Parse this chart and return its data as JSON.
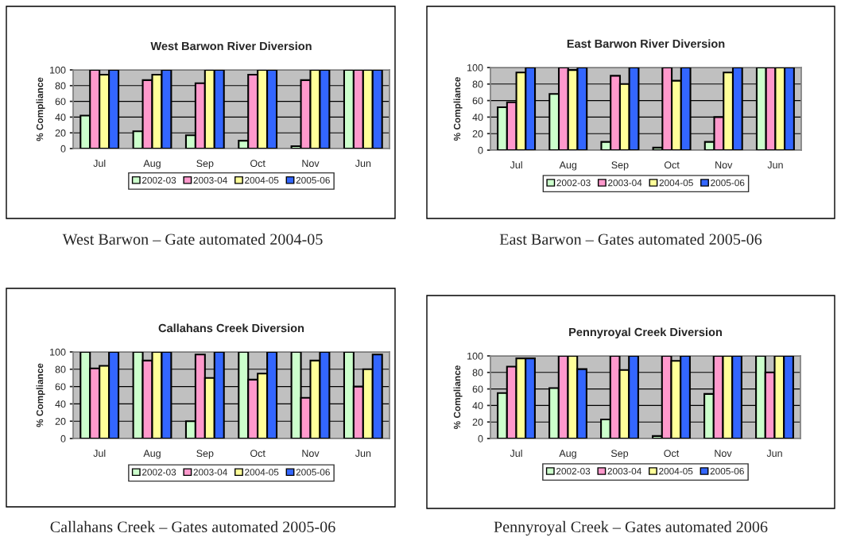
{
  "chart_data": [
    {
      "type": "bar",
      "title": "West Barwon River Diversion",
      "ylabel": "% Compliance",
      "categories": [
        "Jul",
        "Aug",
        "Sep",
        "Oct",
        "Nov",
        "Jun"
      ],
      "ylim": [
        0,
        100
      ],
      "yticks": [
        0,
        20,
        40,
        60,
        80,
        100
      ],
      "grid": "y",
      "legend": "bottom",
      "annotations": [
        "West Barwon – Gate automated 2004-05"
      ],
      "series": [
        {
          "name": "2002-03",
          "color": "#ccffcc",
          "values": [
            42,
            22,
            17,
            10,
            3,
            100
          ]
        },
        {
          "name": "2003-04",
          "color": "#ff99cc",
          "values": [
            100,
            87,
            83,
            94,
            87,
            100
          ]
        },
        {
          "name": "2004-05",
          "color": "#ffff99",
          "values": [
            94,
            94,
            100,
            100,
            100,
            100
          ]
        },
        {
          "name": "2005-06",
          "color": "#3366ff",
          "values": [
            100,
            100,
            100,
            100,
            100,
            100
          ]
        }
      ]
    },
    {
      "type": "bar",
      "title": "East Barwon River Diversion",
      "ylabel": "% Compliance",
      "categories": [
        "Jul",
        "Aug",
        "Sep",
        "Oct",
        "Nov",
        "Jun"
      ],
      "ylim": [
        0,
        100
      ],
      "yticks": [
        0,
        20,
        40,
        60,
        80,
        100
      ],
      "grid": "y",
      "legend": "bottom",
      "annotations": [
        "East Barwon – Gates automated 2005-06"
      ],
      "series": [
        {
          "name": "2002-03",
          "color": "#ccffcc",
          "values": [
            52,
            68,
            10,
            3,
            10,
            100
          ]
        },
        {
          "name": "2003-04",
          "color": "#ff99cc",
          "values": [
            58,
            100,
            90,
            100,
            40,
            100
          ]
        },
        {
          "name": "2004-05",
          "color": "#ffff99",
          "values": [
            94,
            97,
            80,
            84,
            94,
            100
          ]
        },
        {
          "name": "2005-06",
          "color": "#3366ff",
          "values": [
            100,
            100,
            100,
            100,
            100,
            100
          ]
        }
      ]
    },
    {
      "type": "bar",
      "title": "Callahans Creek Diversion",
      "ylabel": "% Compliance",
      "categories": [
        "Jul",
        "Aug",
        "Sep",
        "Oct",
        "Nov",
        "Jun"
      ],
      "ylim": [
        0,
        100
      ],
      "yticks": [
        0,
        20,
        40,
        60,
        80,
        100
      ],
      "grid": "y",
      "legend": "bottom",
      "annotations": [
        "Callahans Creek – Gates automated 2005-06"
      ],
      "series": [
        {
          "name": "2002-03",
          "color": "#ccffcc",
          "values": [
            100,
            100,
            20,
            100,
            100,
            100
          ]
        },
        {
          "name": "2003-04",
          "color": "#ff99cc",
          "values": [
            81,
            90,
            97,
            68,
            47,
            60
          ]
        },
        {
          "name": "2004-05",
          "color": "#ffff99",
          "values": [
            84,
            100,
            70,
            75,
            90,
            80
          ]
        },
        {
          "name": "2005-06",
          "color": "#3366ff",
          "values": [
            100,
            100,
            100,
            100,
            100,
            97
          ]
        }
      ]
    },
    {
      "type": "bar",
      "title": "Pennyroyal Creek Diversion",
      "ylabel": "% Compliance",
      "categories": [
        "Jul",
        "Aug",
        "Sep",
        "Oct",
        "Nov",
        "Jun"
      ],
      "ylim": [
        0,
        100
      ],
      "yticks": [
        0,
        20,
        40,
        60,
        80,
        100
      ],
      "grid": "y",
      "legend": "bottom",
      "annotations": [
        "Pennyroyal Creek – Gates automated 2006"
      ],
      "series": [
        {
          "name": "2002-03",
          "color": "#ccffcc",
          "values": [
            55,
            61,
            23,
            3,
            54,
            100
          ]
        },
        {
          "name": "2003-04",
          "color": "#ff99cc",
          "values": [
            87,
            100,
            100,
            100,
            100,
            80
          ]
        },
        {
          "name": "2004-05",
          "color": "#ffff99",
          "values": [
            97,
            100,
            83,
            94,
            100,
            100
          ]
        },
        {
          "name": "2005-06",
          "color": "#3366ff",
          "values": [
            97,
            84,
            100,
            100,
            100,
            100
          ]
        }
      ]
    }
  ]
}
